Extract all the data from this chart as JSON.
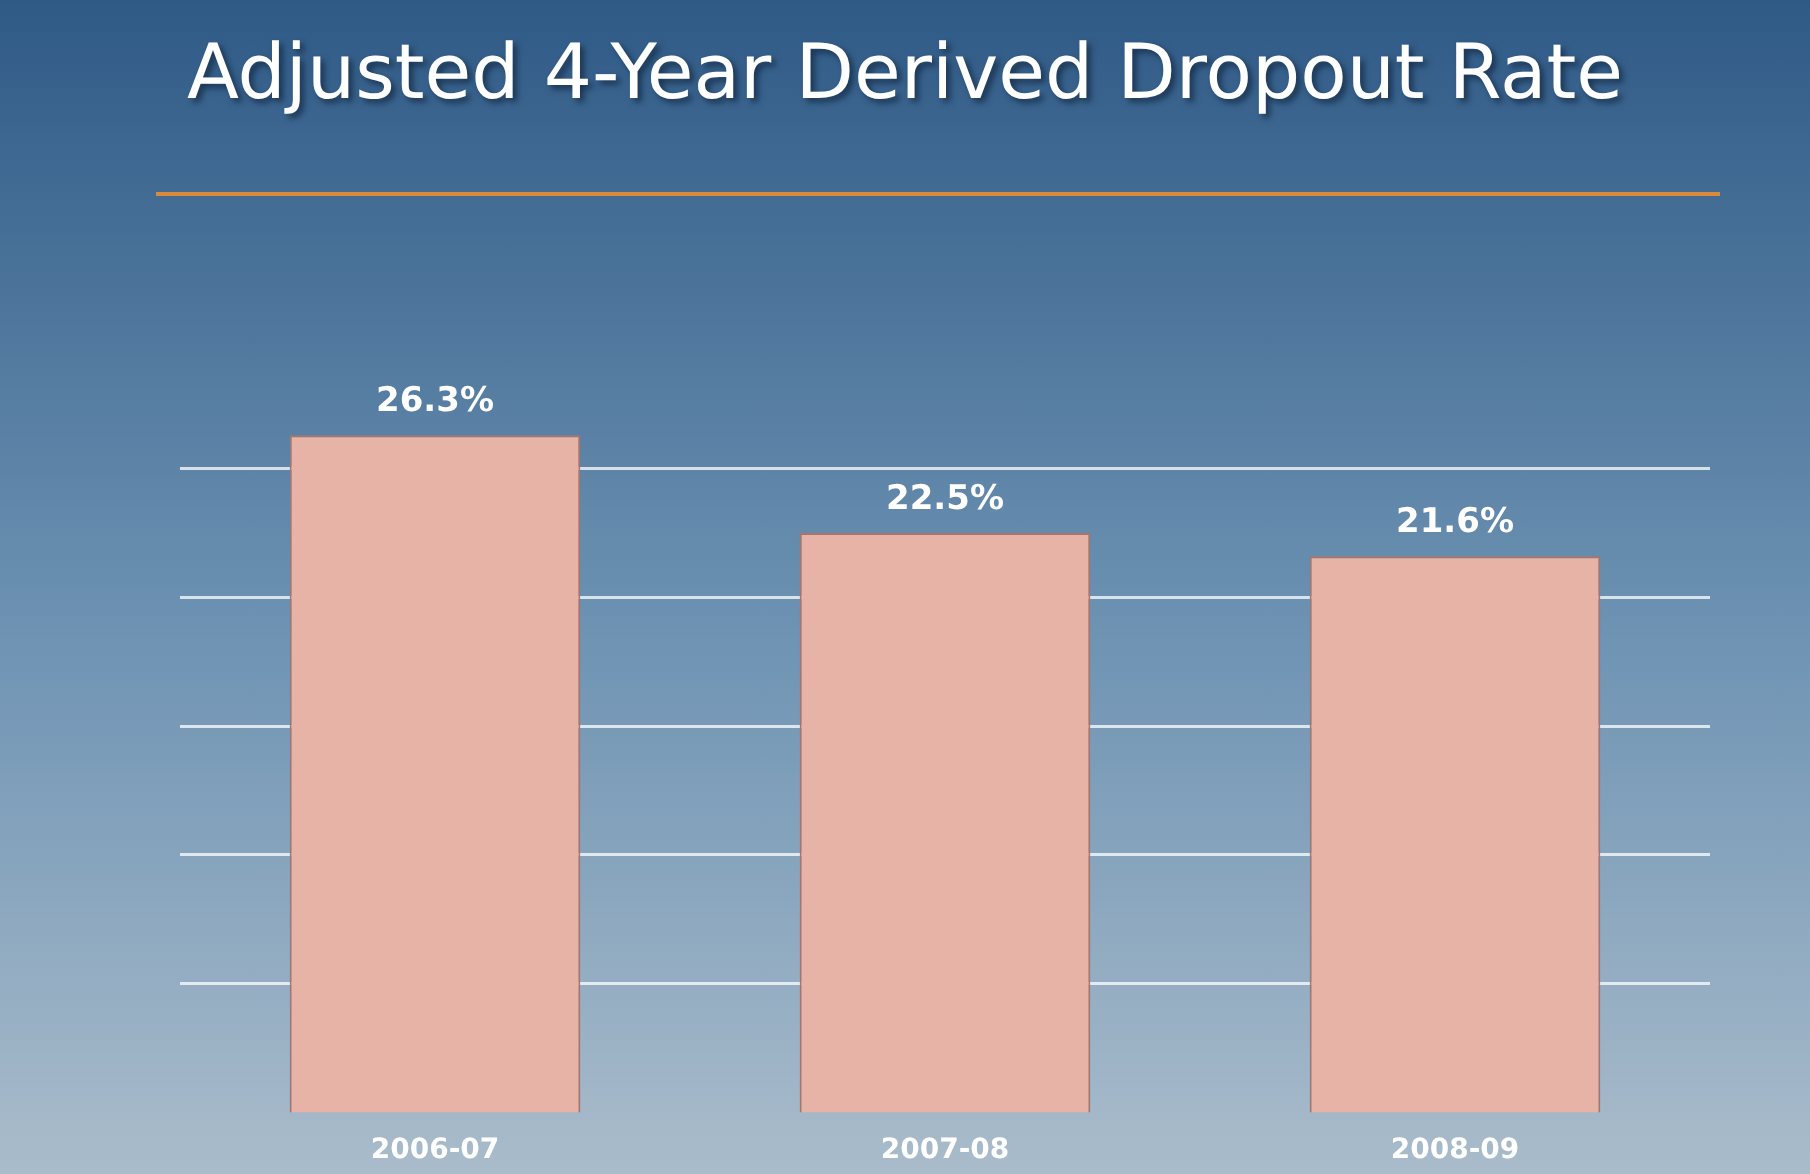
{
  "chart_data": {
    "type": "bar",
    "title": "Adjusted 4-Year Derived Dropout Rate",
    "categories": [
      "2006-07",
      "2007-08",
      "2008-09"
    ],
    "values": [
      26.3,
      22.5,
      21.6
    ],
    "value_labels": [
      "26.3%",
      "22.5%",
      "21.6%"
    ],
    "color": "#e6b3a6",
    "yticks": [
      {
        "value": 5,
        "label": null
      },
      {
        "value": 10,
        "label": null
      },
      {
        "value": 15,
        "label": null
      },
      {
        "value": 20,
        "label": null
      },
      {
        "value": 25,
        "label": null
      }
    ],
    "grid": "y"
  }
}
